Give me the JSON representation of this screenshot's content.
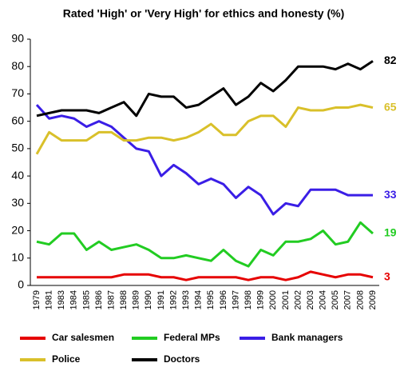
{
  "chart_data": {
    "type": "line",
    "title": "Rated 'High' or 'Very High' for ethics and honesty (%)",
    "categories": [
      "1979",
      "1981",
      "1983",
      "1984",
      "1985",
      "1986",
      "1987",
      "1988",
      "1989",
      "1990",
      "1991",
      "1992",
      "1993",
      "1994",
      "1995",
      "1996",
      "1997",
      "1998",
      "1999",
      "2000",
      "2001",
      "2002",
      "2003",
      "2004",
      "2005",
      "2007",
      "2008",
      "2009"
    ],
    "series": [
      {
        "name": "Car salesmen",
        "color": "#e60000",
        "values": [
          3,
          3,
          3,
          3,
          3,
          3,
          3,
          4,
          4,
          4,
          3,
          3,
          2,
          3,
          3,
          3,
          3,
          2,
          3,
          3,
          2,
          3,
          5,
          4,
          3,
          4,
          4,
          3
        ]
      },
      {
        "name": "Federal MPs",
        "color": "#22cc22",
        "values": [
          16,
          15,
          19,
          19,
          13,
          16,
          13,
          14,
          15,
          13,
          10,
          10,
          11,
          10,
          9,
          13,
          9,
          7,
          13,
          11,
          16,
          16,
          17,
          20,
          15,
          16,
          23,
          19
        ]
      },
      {
        "name": "Bank managers",
        "color": "#3a1ee6",
        "values": [
          66,
          61,
          62,
          61,
          58,
          60,
          58,
          54,
          50,
          49,
          40,
          44,
          41,
          37,
          39,
          37,
          32,
          36,
          33,
          26,
          30,
          29,
          35,
          35,
          35,
          33,
          33,
          33
        ]
      },
      {
        "name": "Police",
        "color": "#d9c02a",
        "values": [
          48,
          56,
          53,
          53,
          53,
          56,
          56,
          53,
          53,
          54,
          54,
          53,
          54,
          56,
          59,
          55,
          55,
          60,
          62,
          62,
          58,
          65,
          64,
          64,
          65,
          65,
          66,
          65
        ]
      },
      {
        "name": "Doctors",
        "color": "#000000",
        "values": [
          62,
          63,
          64,
          64,
          64,
          63,
          65,
          67,
          62,
          70,
          69,
          69,
          65,
          66,
          69,
          72,
          66,
          69,
          74,
          71,
          75,
          80,
          80,
          80,
          79,
          81,
          79,
          82
        ]
      }
    ],
    "ylim": [
      0,
      90
    ],
    "yticks": [
      0,
      10,
      20,
      30,
      40,
      50,
      60,
      70,
      80,
      90
    ],
    "grid": false
  }
}
